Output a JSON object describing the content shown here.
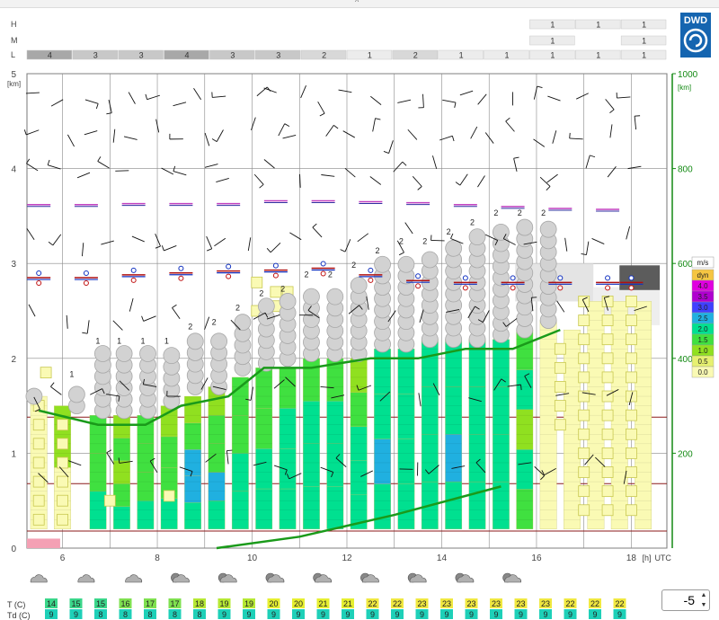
{
  "logo": {
    "text": "DWD",
    "color": "#1565b0"
  },
  "layer_rows": [
    {
      "label": "H",
      "cells": [
        null,
        null,
        null,
        null,
        null,
        null,
        null,
        null,
        null,
        null,
        null,
        "1",
        "1",
        "1"
      ]
    },
    {
      "label": "M",
      "cells": [
        null,
        null,
        null,
        null,
        null,
        null,
        null,
        null,
        null,
        null,
        null,
        "1",
        null,
        "1"
      ]
    },
    {
      "label": "L",
      "cells": [
        "4",
        "3",
        "3",
        "4",
        "3",
        "3",
        "2",
        "1",
        "2",
        "1",
        "1",
        "1",
        "1",
        "1"
      ]
    }
  ],
  "chart_data": {
    "type": "meteogram",
    "x_unit": "[h]",
    "x_unit_suffix": "UTC",
    "x_range": [
      5.25,
      18.75
    ],
    "x_ticks": [
      6,
      8,
      10,
      12,
      14,
      16,
      18
    ],
    "x_ticks_labels": [
      "6",
      "8",
      "10",
      "12",
      "14",
      "16",
      "18"
    ],
    "y_left": {
      "unit": "[km]",
      "range": [
        0,
        5
      ],
      "ticks": [
        0,
        1,
        2,
        3,
        4,
        5
      ]
    },
    "y_right": {
      "unit": "[km]",
      "range": [
        0,
        1000
      ],
      "ticks": [
        200,
        400,
        600,
        800,
        1000
      ],
      "color": "#138a13"
    },
    "wind_legend": {
      "unit": "m/s",
      "entries": [
        {
          "label": "dyn",
          "color": "#f5c542"
        },
        {
          "label": "4.0",
          "color": "#e000e0"
        },
        {
          "label": "3.5",
          "color": "#b000d0"
        },
        {
          "label": "3.0",
          "color": "#4040ff"
        },
        {
          "label": "2.5",
          "color": "#20b0e0"
        },
        {
          "label": "2.0",
          "color": "#00e090"
        },
        {
          "label": "1.5",
          "color": "#40e040"
        },
        {
          "label": "1.0",
          "color": "#90e020"
        },
        {
          "label": "0.5",
          "color": "#e6f070"
        },
        {
          "label": "0.0",
          "color": "#fafab4"
        }
      ]
    },
    "columns": [
      {
        "t": 5.5,
        "top": 1.6,
        "colors": [
          "#fafab4"
        ]
      },
      {
        "t": 6.0,
        "top": 1.5,
        "colors": [
          "#fafab4",
          "#90e020"
        ]
      },
      {
        "t": 6.75,
        "top": 1.4,
        "colors": [
          "#00e090",
          "#40e040",
          "#40e040"
        ]
      },
      {
        "t": 7.25,
        "top": 1.4,
        "colors": [
          "#00e090",
          "#40e040",
          "#90e020",
          "#40e040",
          "#90e020"
        ]
      },
      {
        "t": 7.75,
        "top": 1.4,
        "colors": [
          "#00e090",
          "#40e040",
          "#40e040",
          "#40e040"
        ]
      },
      {
        "t": 8.25,
        "top": 1.5,
        "colors": [
          "#00e090",
          "#40e040",
          "#40e040",
          "#90e020"
        ]
      },
      {
        "t": 8.75,
        "top": 1.6,
        "colors": [
          "#00e090",
          "#20b0e0",
          "#20b0e0",
          "#40e040",
          "#90e020"
        ]
      },
      {
        "t": 9.25,
        "top": 1.7,
        "colors": [
          "#00e090",
          "#20b0e0",
          "#40e040",
          "#40e040",
          "#90e020"
        ]
      },
      {
        "t": 9.75,
        "top": 1.8,
        "colors": [
          "#00e090",
          "#00e090",
          "#40e040",
          "#40e040"
        ]
      },
      {
        "t": 10.25,
        "top": 1.9,
        "colors": [
          "#00e090",
          "#00e090",
          "#40e040",
          "#40e040"
        ]
      },
      {
        "t": 10.75,
        "top": 1.9,
        "colors": [
          "#00e090",
          "#00e090",
          "#00e090",
          "#40e040"
        ]
      },
      {
        "t": 11.25,
        "top": 2.0,
        "colors": [
          "#00e090",
          "#00e090",
          "#00e090",
          "#40e040"
        ]
      },
      {
        "t": 11.75,
        "top": 2.0,
        "colors": [
          "#00e090",
          "#00e090",
          "#00e090",
          "#40e040"
        ]
      },
      {
        "t": 12.25,
        "top": 2.0,
        "colors": [
          "#00e090",
          "#00e090",
          "#00e090",
          "#40e040",
          "#90e020"
        ]
      },
      {
        "t": 12.75,
        "top": 2.1,
        "colors": [
          "#00e090",
          "#20b0e0",
          "#00e090",
          "#00e090"
        ]
      },
      {
        "t": 13.25,
        "top": 2.1,
        "colors": [
          "#00e090",
          "#00e090",
          "#00e090",
          "#00e090"
        ]
      },
      {
        "t": 13.75,
        "top": 2.2,
        "colors": [
          "#00e090",
          "#00e090",
          "#00e090",
          "#00e090"
        ]
      },
      {
        "t": 14.25,
        "top": 2.2,
        "colors": [
          "#00e090",
          "#20b0e0",
          "#00e090",
          "#00e090"
        ]
      },
      {
        "t": 14.75,
        "top": 2.2,
        "colors": [
          "#00e090",
          "#00e090",
          "#00e090",
          "#00e090"
        ]
      },
      {
        "t": 15.25,
        "top": 2.2,
        "colors": [
          "#00e090",
          "#00e090",
          "#00e090",
          "#00e090"
        ]
      },
      {
        "t": 15.75,
        "top": 2.3,
        "colors": [
          "#40e040",
          "#00e090",
          "#90e020",
          "#00e090",
          "#40e040"
        ]
      },
      {
        "t": 16.25,
        "top": 2.4,
        "colors": [
          "#fafab4"
        ]
      },
      {
        "t": 16.75,
        "top": 2.3,
        "colors": [
          "#fafab4"
        ]
      },
      {
        "t": 17.25,
        "top": 2.6,
        "colors": [
          "#fafab4"
        ]
      },
      {
        "t": 17.75,
        "top": 2.6,
        "colors": [
          "#fafab4"
        ]
      },
      {
        "t": 18.25,
        "top": 2.6,
        "colors": [
          "#fafab4"
        ]
      }
    ],
    "cloud_puffs": [
      {
        "t": 5.4,
        "base": 1.6,
        "top": 1.65,
        "label": null
      },
      {
        "t": 6.3,
        "base": 1.5,
        "top": 1.7,
        "label": "1"
      },
      {
        "t": 6.85,
        "base": 1.45,
        "top": 2.05,
        "label": "1"
      },
      {
        "t": 7.3,
        "base": 1.45,
        "top": 2.05,
        "label": "1"
      },
      {
        "t": 7.8,
        "base": 1.45,
        "top": 2.05,
        "label": "1"
      },
      {
        "t": 8.3,
        "base": 1.55,
        "top": 2.05,
        "label": "1"
      },
      {
        "t": 8.8,
        "base": 1.7,
        "top": 2.2,
        "label": "2"
      },
      {
        "t": 9.3,
        "base": 1.7,
        "top": 2.25,
        "label": "2"
      },
      {
        "t": 9.8,
        "base": 1.9,
        "top": 2.4,
        "label": "2"
      },
      {
        "t": 10.3,
        "base": 1.95,
        "top": 2.55,
        "label": "2"
      },
      {
        "t": 10.75,
        "base": 2.0,
        "top": 2.6,
        "label": "2"
      },
      {
        "t": 11.25,
        "base": 2.05,
        "top": 2.75,
        "label": "2"
      },
      {
        "t": 11.75,
        "base": 2.05,
        "top": 2.75,
        "label": "2"
      },
      {
        "t": 12.25,
        "base": 2.05,
        "top": 2.85,
        "label": "2"
      },
      {
        "t": 12.75,
        "base": 2.15,
        "top": 3.0,
        "label": "2"
      },
      {
        "t": 13.25,
        "base": 2.15,
        "top": 3.1,
        "label": "2"
      },
      {
        "t": 13.75,
        "base": 2.2,
        "top": 3.1,
        "label": "2"
      },
      {
        "t": 14.25,
        "base": 2.2,
        "top": 3.2,
        "label": "2"
      },
      {
        "t": 14.75,
        "base": 2.2,
        "top": 3.3,
        "label": "2"
      },
      {
        "t": 15.25,
        "base": 2.25,
        "top": 3.4,
        "label": "2"
      },
      {
        "t": 15.75,
        "base": 2.3,
        "top": 3.4,
        "label": "2"
      },
      {
        "t": 16.25,
        "base": 2.4,
        "top": 3.4,
        "label": "2"
      }
    ],
    "yellow_squares": [
      [
        5.5,
        1.5
      ],
      [
        5.5,
        1.3
      ],
      [
        5.5,
        1.1
      ],
      [
        5.5,
        0.9
      ],
      [
        5.5,
        0.7
      ],
      [
        5.5,
        0.5
      ],
      [
        5.5,
        0.3
      ],
      [
        6.0,
        1.3
      ],
      [
        6.0,
        1.1
      ],
      [
        6.0,
        0.9
      ],
      [
        6.0,
        0.7
      ],
      [
        6.0,
        0.5
      ],
      [
        6.0,
        0.3
      ],
      [
        5.65,
        1.85
      ],
      [
        7.0,
        0.5
      ],
      [
        8.25,
        0.55
      ],
      [
        10.1,
        2.8
      ],
      [
        10.1,
        2.5
      ],
      [
        10.5,
        2.7
      ],
      [
        10.5,
        2.55
      ],
      [
        10.75,
        2.7
      ],
      [
        16.5,
        2.1
      ],
      [
        16.5,
        1.9
      ],
      [
        16.5,
        1.7
      ],
      [
        16.5,
        1.5
      ],
      [
        16.5,
        1.3
      ],
      [
        17.0,
        2.6
      ],
      [
        17.0,
        2.4
      ],
      [
        17.0,
        2.2
      ],
      [
        17.0,
        2.0
      ],
      [
        17.0,
        1.8
      ],
      [
        17.0,
        1.6
      ],
      [
        17.0,
        1.4
      ],
      [
        17.0,
        1.2
      ],
      [
        17.0,
        1.0
      ],
      [
        17.0,
        0.8
      ],
      [
        17.0,
        0.6
      ],
      [
        17.0,
        0.4
      ],
      [
        17.5,
        2.6
      ],
      [
        17.5,
        2.4
      ],
      [
        17.5,
        2.2
      ],
      [
        17.5,
        2.0
      ],
      [
        17.5,
        1.8
      ],
      [
        17.5,
        1.6
      ],
      [
        17.5,
        1.4
      ],
      [
        17.5,
        1.2
      ],
      [
        17.5,
        1.0
      ],
      [
        17.5,
        0.8
      ],
      [
        17.5,
        0.6
      ],
      [
        17.5,
        0.4
      ],
      [
        18.0,
        2.6
      ],
      [
        18.0,
        2.4
      ],
      [
        18.0,
        2.2
      ],
      [
        18.0,
        2.0
      ],
      [
        18.0,
        1.8
      ],
      [
        18.0,
        1.6
      ],
      [
        18.0,
        1.4
      ],
      [
        18.0,
        1.2
      ],
      [
        18.0,
        1.0
      ],
      [
        18.0,
        0.8
      ],
      [
        18.0,
        0.6
      ],
      [
        18.0,
        0.4
      ]
    ],
    "boundary_layer_line": {
      "color": "#1a9a1a",
      "points": [
        [
          5.5,
          1.45
        ],
        [
          6.75,
          1.3
        ],
        [
          7.75,
          1.3
        ],
        [
          8.5,
          1.5
        ],
        [
          9.5,
          1.6
        ],
        [
          10.25,
          1.9
        ],
        [
          11.25,
          1.9
        ],
        [
          12.5,
          2.0
        ],
        [
          13.5,
          2.0
        ],
        [
          14.5,
          2.1
        ],
        [
          15.5,
          2.1
        ],
        [
          16.5,
          2.3
        ]
      ]
    },
    "lower_green_line": {
      "color": "#1a9a1a",
      "points": [
        [
          9.25,
          0.0
        ],
        [
          11.0,
          0.12
        ],
        [
          13.0,
          0.35
        ],
        [
          15.25,
          0.65
        ]
      ]
    },
    "dark_red_lines": [
      0.18,
      0.68,
      1.38
    ],
    "pink_ground_bar": {
      "t_start": 5.25,
      "t_end": 5.95,
      "height": 0.1
    },
    "inversion_markers": [
      {
        "t": 5.5,
        "z": 2.85,
        "circle": true
      },
      {
        "t": 6.5,
        "z": 2.85,
        "circle": true
      },
      {
        "t": 7.5,
        "z": 2.88,
        "circle": true
      },
      {
        "t": 8.5,
        "z": 2.9,
        "circle": true
      },
      {
        "t": 9.5,
        "z": 2.92,
        "circle": true
      },
      {
        "t": 10.5,
        "z": 2.93,
        "circle": true
      },
      {
        "t": 11.5,
        "z": 2.95,
        "circle": true
      },
      {
        "t": 12.5,
        "z": 2.88,
        "circle": true
      },
      {
        "t": 13.5,
        "z": 2.82,
        "circle": true
      },
      {
        "t": 14.5,
        "z": 2.8,
        "circle": true
      },
      {
        "t": 15.5,
        "z": 2.8,
        "circle": true
      },
      {
        "t": 16.5,
        "z": 2.8,
        "circle": true
      },
      {
        "t": 17.5,
        "z": 2.8,
        "circle": true
      },
      {
        "t": 18.0,
        "z": 2.8,
        "circle": true
      }
    ],
    "upper_markers": [
      [
        5.5,
        3.62
      ],
      [
        6.5,
        3.62
      ],
      [
        7.5,
        3.63
      ],
      [
        8.5,
        3.63
      ],
      [
        9.5,
        3.63
      ],
      [
        10.5,
        3.66
      ],
      [
        11.5,
        3.66
      ],
      [
        12.5,
        3.65
      ],
      [
        13.5,
        3.64
      ],
      [
        14.5,
        3.62
      ],
      [
        15.5,
        3.6
      ],
      [
        16.5,
        3.58
      ],
      [
        17.5,
        3.57
      ]
    ],
    "T_row": {
      "label": "T (C)",
      "values": [
        "14",
        "15",
        "15",
        "16",
        "17",
        "17",
        "18",
        "19",
        "19",
        "20",
        "20",
        "21",
        "21",
        "22",
        "22",
        "23",
        "23",
        "23",
        "23",
        "23",
        "23",
        "22",
        "22",
        "22"
      ]
    },
    "Td_row": {
      "label": "Td (C)",
      "values": [
        "9",
        "9",
        "8",
        "8",
        "8",
        "8",
        "8",
        "9",
        "9",
        "9",
        "9",
        "9",
        "9",
        "9",
        "9",
        "9",
        "9",
        "9",
        "9",
        "9",
        "9",
        "9",
        "9",
        "9"
      ]
    },
    "sky_icon_times": [
      5.5,
      6.5,
      7.5,
      8.5,
      9.5,
      10.5,
      11.5,
      12.5,
      13.5,
      14.5,
      15.5
    ]
  },
  "stepper": {
    "value": "-5"
  }
}
